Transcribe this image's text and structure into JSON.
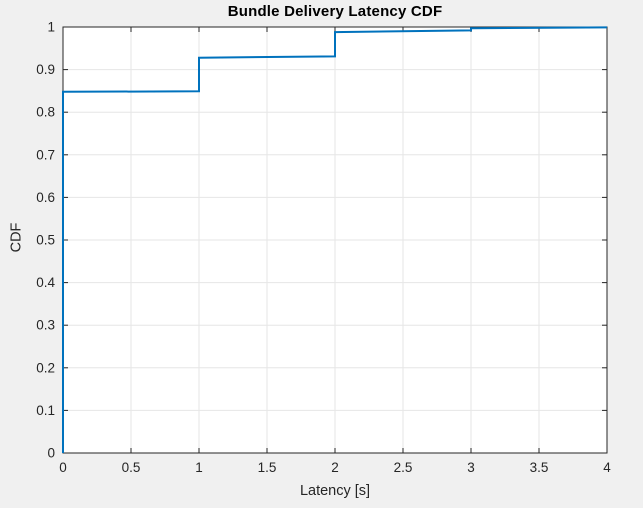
{
  "figure": {
    "background_color": "#f0f0f0",
    "plot_background_color": "#ffffff"
  },
  "chart_data": {
    "type": "line",
    "subtype": "empirical-cdf-step",
    "title": "Bundle Delivery Latency CDF",
    "xlabel": "Latency [s]",
    "ylabel": "CDF",
    "xlim": [
      0,
      4
    ],
    "ylim": [
      0,
      1
    ],
    "x_ticks": [
      0,
      0.5,
      1,
      1.5,
      2,
      2.5,
      3,
      3.5,
      4
    ],
    "x_tick_labels": [
      "0",
      "0.5",
      "1",
      "1.5",
      "2",
      "2.5",
      "3",
      "3.5",
      "4"
    ],
    "y_ticks": [
      0,
      0.1,
      0.2,
      0.3,
      0.4,
      0.5,
      0.6,
      0.7,
      0.8,
      0.9,
      1
    ],
    "y_tick_labels": [
      "0",
      "0.1",
      "0.2",
      "0.3",
      "0.4",
      "0.5",
      "0.6",
      "0.7",
      "0.8",
      "0.9",
      "1"
    ],
    "grid": true,
    "legend": null,
    "line_color": "#0072bd",
    "grid_color": "#e6e6e6",
    "axis_color": "#262626",
    "line_width": 2,
    "points": [
      [
        0,
        0
      ],
      [
        0,
        0.848
      ],
      [
        1,
        0.849
      ],
      [
        1,
        0.928
      ],
      [
        2,
        0.931
      ],
      [
        2,
        0.988
      ],
      [
        3,
        0.992
      ],
      [
        3,
        0.997
      ],
      [
        4,
        0.999
      ]
    ],
    "steps_summary": [
      {
        "x": 0,
        "cdf_after_jump": 0.85
      },
      {
        "x": 1,
        "cdf_after_jump": 0.93
      },
      {
        "x": 2,
        "cdf_after_jump": 0.99
      },
      {
        "x": 3,
        "cdf_after_jump": 0.997
      },
      {
        "x": 4,
        "cdf_end": 1.0
      }
    ]
  }
}
